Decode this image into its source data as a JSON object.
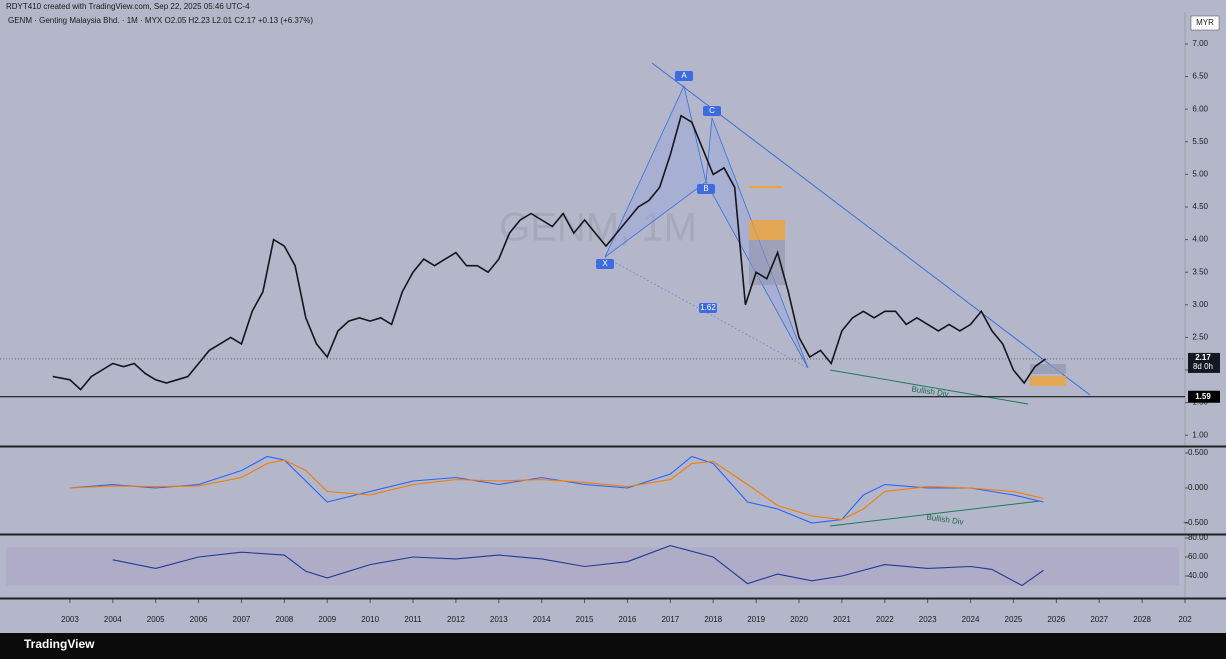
{
  "header": {
    "credit": "RDYT410 created with TradingView.com, Sep 22, 2025 05:46 UTC-4",
    "symbol": "GENM · Genting Malaysia Bhd. · 1M · MYX  O2.05  H2.23  L2.01  C2.17  +0.13 (+6.37%)",
    "currency": "MYR",
    "brand": "TradingView"
  },
  "chart_data": [
    {
      "type": "line",
      "watermark": "GENM, 1M",
      "x": [
        2002.6,
        2003,
        2003.25,
        2003.5,
        2003.75,
        2004,
        2004.25,
        2004.5,
        2004.75,
        2005,
        2005.25,
        2005.5,
        2005.75,
        2006,
        2006.25,
        2006.5,
        2006.75,
        2007,
        2007.25,
        2007.5,
        2007.75,
        2008,
        2008.25,
        2008.5,
        2008.75,
        2009,
        2009.25,
        2009.5,
        2009.75,
        2010,
        2010.25,
        2010.5,
        2010.75,
        2011,
        2011.25,
        2011.5,
        2011.75,
        2012,
        2012.25,
        2012.5,
        2012.75,
        2013,
        2013.25,
        2013.5,
        2013.75,
        2014,
        2014.25,
        2014.5,
        2014.75,
        2015,
        2015.25,
        2015.5,
        2015.75,
        2016,
        2016.25,
        2016.5,
        2016.75,
        2017,
        2017.25,
        2017.5,
        2017.75,
        2018,
        2018.25,
        2018.5,
        2018.75,
        2019,
        2019.25,
        2019.5,
        2019.75,
        2020,
        2020.25,
        2020.5,
        2020.75,
        2021,
        2021.25,
        2021.5,
        2021.75,
        2022,
        2022.25,
        2022.5,
        2022.75,
        2023,
        2023.25,
        2023.5,
        2023.75,
        2024,
        2024.25,
        2024.5,
        2024.75,
        2025,
        2025.25,
        2025.5,
        2025.75
      ],
      "series": [
        {
          "color": "#14151c",
          "values": [
            1.9,
            1.85,
            1.7,
            1.9,
            2.0,
            2.1,
            2.05,
            2.1,
            1.95,
            1.85,
            1.8,
            1.85,
            1.9,
            2.1,
            2.3,
            2.4,
            2.5,
            2.4,
            2.9,
            3.2,
            4.0,
            3.9,
            3.6,
            2.8,
            2.4,
            2.2,
            2.6,
            2.75,
            2.8,
            2.75,
            2.8,
            2.7,
            3.2,
            3.5,
            3.7,
            3.6,
            3.7,
            3.8,
            3.6,
            3.6,
            3.5,
            3.7,
            4.1,
            4.3,
            4.4,
            4.3,
            4.2,
            4.4,
            4.1,
            4.3,
            4.1,
            3.9,
            4.1,
            4.3,
            4.5,
            4.6,
            4.8,
            5.3,
            5.9,
            5.8,
            5.4,
            5.0,
            5.1,
            4.8,
            3.0,
            3.5,
            3.4,
            3.8,
            3.2,
            2.5,
            2.2,
            2.3,
            2.1,
            2.6,
            2.8,
            2.9,
            2.8,
            2.9,
            2.9,
            2.7,
            2.8,
            2.7,
            2.6,
            2.7,
            2.6,
            2.7,
            2.9,
            2.6,
            2.4,
            2.0,
            1.8,
            2.05,
            2.17
          ]
        }
      ],
      "xlim": [
        2001.37,
        2029
      ],
      "xticks": [
        2003,
        2004,
        2005,
        2006,
        2007,
        2008,
        2009,
        2010,
        2011,
        2012,
        2013,
        2014,
        2015,
        2016,
        2017,
        2018,
        2019,
        2020,
        2021,
        2022,
        2023,
        2024,
        2025,
        2026,
        2027,
        2028,
        {
          "value": 2029,
          "label": "202"
        }
      ],
      "ylim": [
        0.85,
        7.49
      ],
      "yticks": [
        {
          "value": 1,
          "label": "1.00"
        },
        {
          "value": 1.5,
          "label": "1.50"
        },
        {
          "value": 2,
          "label": "2.00"
        },
        {
          "value": 2.5,
          "label": "2.50"
        },
        {
          "value": 3,
          "label": "3.00"
        },
        {
          "value": 3.5,
          "label": "3.50"
        },
        {
          "value": 4,
          "label": "4.00"
        },
        {
          "value": 4.5,
          "label": "4.50"
        },
        {
          "value": 5,
          "label": "5.00"
        },
        {
          "value": 5.5,
          "label": "5.50"
        },
        {
          "value": 6,
          "label": "6.00"
        },
        {
          "value": 6.5,
          "label": "6.50"
        },
        {
          "value": 7,
          "label": "7.00"
        }
      ],
      "last_price": 2.17,
      "countdown": "8d 0h",
      "level": 1.59,
      "annotations": [
        "A",
        "B",
        "C",
        "X",
        "1.62",
        "Bullish Div"
      ]
    },
    {
      "type": "line",
      "x": [
        2003,
        2004,
        2005,
        2006,
        2007,
        2007.6,
        2008,
        2008.5,
        2009,
        2010,
        2011,
        2012,
        2013,
        2014,
        2015,
        2016,
        2017,
        2017.5,
        2018,
        2018.8,
        2019.5,
        2020.3,
        2021,
        2021.5,
        2022,
        2023,
        2024,
        2025,
        2025.7
      ],
      "series": [
        {
          "color": "#2962ff",
          "values": [
            0,
            0.05,
            0,
            0.05,
            0.25,
            0.45,
            0.4,
            0.1,
            -0.2,
            -0.05,
            0.1,
            0.15,
            0.05,
            0.15,
            0.05,
            0,
            0.2,
            0.45,
            0.35,
            -0.2,
            -0.3,
            -0.5,
            -0.45,
            -0.1,
            0.05,
            0,
            0,
            -0.1,
            -0.2
          ]
        },
        {
          "color": "#f57c00",
          "values": [
            0,
            0.03,
            0.02,
            0.03,
            0.15,
            0.35,
            0.4,
            0.25,
            -0.05,
            -0.1,
            0.05,
            0.12,
            0.1,
            0.12,
            0.08,
            0.02,
            0.12,
            0.35,
            0.38,
            0.05,
            -0.25,
            -0.4,
            -0.45,
            -0.3,
            -0.05,
            0.02,
            0,
            -0.05,
            -0.15
          ]
        }
      ],
      "xlim": [
        2001.37,
        2029
      ],
      "ylim": [
        -0.643,
        0.571
      ],
      "yticks": [
        {
          "value": 0.5,
          "label": "0.500"
        },
        {
          "value": 0,
          "label": "0.000"
        },
        {
          "value": -0.5,
          "label": "−0.500"
        }
      ],
      "annotations": [
        "Bullish Div"
      ]
    },
    {
      "type": "line",
      "x": [
        2004,
        2005,
        2006,
        2007,
        2008,
        2008.5,
        2009,
        2010,
        2011,
        2012,
        2013,
        2014,
        2015,
        2016,
        2017,
        2018,
        2018.8,
        2019.5,
        2020.3,
        2021,
        2022,
        2023,
        2024,
        2024.5,
        2025.2,
        2025.7
      ],
      "series": [
        {
          "color": "#1f3a93",
          "values": [
            57,
            48,
            60,
            65,
            62,
            45,
            38,
            52,
            60,
            58,
            62,
            58,
            50,
            55,
            72,
            60,
            32,
            42,
            35,
            40,
            52,
            48,
            50,
            47,
            30,
            46
          ]
        }
      ],
      "xlim": [
        2001.37,
        2029
      ],
      "ylim": [
        17.9,
        82.1
      ],
      "yticks": [
        {
          "value": 40,
          "label": "40.00"
        },
        {
          "value": 60,
          "label": "60.00"
        },
        {
          "value": 80,
          "label": "80.00"
        }
      ]
    }
  ]
}
